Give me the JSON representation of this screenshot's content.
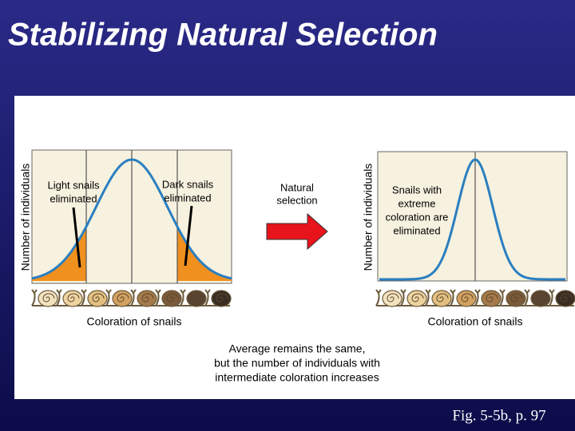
{
  "title": "Stabilizing Natural Selection",
  "left_panel": {
    "y_axis_label": "Number of individuals",
    "x_axis_label": "Coloration of snails",
    "annotations": [
      [
        "Light snails",
        "eliminated"
      ],
      [
        "Dark snails",
        "eliminated"
      ]
    ]
  },
  "arrow_label": [
    "Natural",
    "selection"
  ],
  "right_panel": {
    "y_axis_label": "Number of individuals",
    "x_axis_label": "Coloration of snails",
    "annotation": [
      "Snails with",
      "extreme",
      "coloration are",
      "eliminated"
    ]
  },
  "caption": [
    "Average remains the same,",
    "but the number of individuals with",
    "intermediate coloration increases"
  ],
  "figure_ref": "Fig. 5-5b, p. 97"
}
